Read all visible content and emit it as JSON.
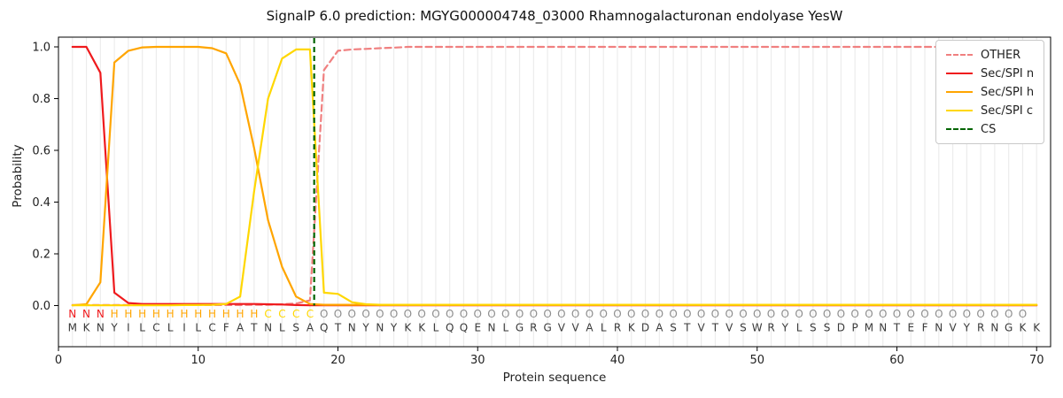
{
  "chart_data": {
    "type": "line",
    "title": "SignalP 6.0 prediction: MGYG000004748_03000 Rhamnogalacturonan endolyase YesW",
    "xlabel": "Protein sequence",
    "ylabel": "Probability",
    "x_range": [
      1,
      70
    ],
    "xlim": [
      0,
      71
    ],
    "ylim": [
      -0.16,
      1.04
    ],
    "xticks": [
      0,
      10,
      20,
      30,
      40,
      50,
      60,
      70
    ],
    "yticks": [
      "0.0",
      "0.2",
      "0.4",
      "0.6",
      "0.8",
      "1.0"
    ],
    "grid": "vertical gridline at every residue position",
    "legend_position": "upper-right",
    "series": [
      {
        "name": "OTHER",
        "color": "#f08080",
        "style": "dashed",
        "values": [
          0.002,
          0.002,
          0.002,
          0.002,
          0.002,
          0.002,
          0.002,
          0.002,
          0.002,
          0.002,
          0.002,
          0.002,
          0.002,
          0.003,
          0.003,
          0.005,
          0.008,
          0.02,
          0.91,
          0.985,
          0.99,
          0.992,
          0.995,
          0.997,
          1,
          1,
          1,
          1,
          1,
          1,
          1,
          1,
          1,
          1,
          1,
          1,
          1,
          1,
          1,
          1,
          1,
          1,
          1,
          1,
          1,
          1,
          1,
          1,
          1,
          1,
          1,
          1,
          1,
          1,
          1,
          1,
          1,
          1,
          1,
          1,
          1,
          1,
          1,
          1,
          1,
          1,
          1,
          1,
          1,
          1
        ]
      },
      {
        "name": "Sec/SPI n",
        "color": "#ef1a1d",
        "style": "solid",
        "values": [
          1,
          1,
          0.9,
          0.05,
          0.01,
          0.006,
          0.006,
          0.006,
          0.006,
          0.006,
          0.006,
          0.006,
          0.006,
          0.006,
          0.005,
          0.004,
          0.002,
          0.001,
          0.001,
          0.001,
          0.001,
          0.001,
          0.001,
          0.001,
          0.001,
          0.001,
          0.001,
          0.001,
          0.001,
          0.001,
          0.001,
          0.001,
          0.001,
          0.001,
          0.001,
          0.001,
          0.001,
          0.001,
          0.001,
          0.001,
          0.001,
          0.001,
          0.001,
          0.001,
          0.001,
          0.001,
          0.001,
          0.001,
          0.001,
          0.001,
          0.001,
          0.001,
          0.001,
          0.001,
          0.001,
          0.001,
          0.001,
          0.001,
          0.001,
          0.001,
          0.001,
          0.001,
          0.001,
          0.001,
          0.001,
          0.001,
          0.001,
          0.001,
          0.001,
          0.001
        ]
      },
      {
        "name": "Sec/SPI h",
        "color": "#ffa500",
        "style": "solid",
        "values": [
          0.001,
          0.005,
          0.09,
          0.94,
          0.985,
          0.998,
          1,
          1,
          1,
          1,
          0.995,
          0.975,
          0.855,
          0.61,
          0.33,
          0.15,
          0.035,
          0.006,
          0.003,
          0.003,
          0.003,
          0.003,
          0.003,
          0.003,
          0.003,
          0.003,
          0.003,
          0.003,
          0.003,
          0.003,
          0.003,
          0.003,
          0.003,
          0.003,
          0.003,
          0.003,
          0.003,
          0.003,
          0.003,
          0.003,
          0.003,
          0.003,
          0.003,
          0.003,
          0.003,
          0.003,
          0.003,
          0.003,
          0.003,
          0.003,
          0.003,
          0.003,
          0.003,
          0.003,
          0.003,
          0.003,
          0.003,
          0.003,
          0.003,
          0.003,
          0.003,
          0.003,
          0.003,
          0.003,
          0.003,
          0.003,
          0.003,
          0.003,
          0.003,
          0.003
        ]
      },
      {
        "name": "Sec/SPI c",
        "color": "#ffd700",
        "style": "solid",
        "values": [
          0.001,
          0.001,
          0.001,
          0.001,
          0.001,
          0.001,
          0.001,
          0.001,
          0.002,
          0.002,
          0.003,
          0.006,
          0.035,
          0.44,
          0.8,
          0.955,
          0.99,
          0.99,
          0.05,
          0.045,
          0.013,
          0.005,
          0.003,
          0.003,
          0.003,
          0.003,
          0.003,
          0.003,
          0.003,
          0.003,
          0.003,
          0.003,
          0.003,
          0.003,
          0.003,
          0.003,
          0.003,
          0.003,
          0.003,
          0.003,
          0.003,
          0.003,
          0.003,
          0.003,
          0.003,
          0.003,
          0.003,
          0.003,
          0.003,
          0.003,
          0.003,
          0.003,
          0.003,
          0.003,
          0.003,
          0.003,
          0.003,
          0.003,
          0.003,
          0.003,
          0.003,
          0.003,
          0.003,
          0.003,
          0.003,
          0.003,
          0.003,
          0.003,
          0.003,
          0.003
        ]
      }
    ],
    "cs_line": {
      "name": "CS",
      "color": "#006400",
      "style": "dashed",
      "x": 18.3,
      "between_positions": [
        18,
        19
      ]
    },
    "sequence": "MKNYILCLILCFATNLSAQTNYNYKKLQQENLGRGVVALRKDASTVTVSWRYLSSDPMNTEFNVYRNGKK",
    "regions": "NNNHHHHHHHHHHHCCCCOOOOOOOOOOOOOOOOOOOOOOOOOOOOOOOOOOOOOOOOOOOOOOOOOOO",
    "region_colors": {
      "N": "#ef1a1d",
      "H": "#ffa500",
      "C": "#ffd700",
      "O": "#8e8e8e"
    },
    "sequence_color": "#3a3a3a"
  }
}
